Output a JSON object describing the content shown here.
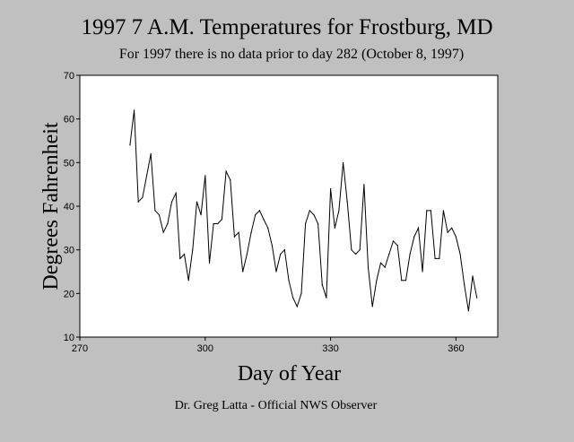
{
  "chart_data": {
    "type": "line",
    "title": "1997 7 A.M. Temperatures for Frostburg, MD",
    "subtitle": "For 1997 there is no data prior to day 282 (October 8, 1997)",
    "xlabel": "Day of Year",
    "ylabel": "Degrees Fahrenheit",
    "footer": "Dr. Greg Latta - Official NWS Observer",
    "xlim": [
      270,
      370
    ],
    "ylim": [
      10,
      70
    ],
    "xticks": [
      270,
      300,
      330,
      360
    ],
    "yticks": [
      10,
      20,
      30,
      40,
      50,
      60,
      70
    ],
    "grid": false,
    "line_color": "#000000",
    "plot_background": "#ffffff",
    "background": "#c0c0c0",
    "series": [
      {
        "x": [
          282,
          283,
          284,
          285,
          286,
          287,
          288,
          289,
          290,
          291,
          292,
          293,
          294,
          295,
          296,
          297,
          298,
          299,
          300,
          301,
          302,
          303,
          304,
          305,
          306,
          307,
          308,
          309,
          310,
          311,
          312,
          313,
          314,
          315,
          316,
          317,
          318,
          319,
          320,
          321,
          322,
          323,
          324,
          325,
          326,
          327,
          328,
          329,
          330,
          331,
          332,
          333,
          334,
          335,
          336,
          337,
          338,
          339,
          340,
          341,
          342,
          343,
          344,
          345,
          346,
          347,
          348,
          349,
          350,
          351,
          352,
          353,
          354,
          355,
          356,
          357,
          358,
          359,
          360,
          361,
          362,
          363,
          364,
          365
        ],
        "y": [
          54,
          62,
          41,
          42,
          47,
          52,
          39,
          38,
          34,
          36,
          41,
          43,
          28,
          29,
          23,
          30,
          41,
          38,
          47,
          27,
          36,
          36,
          37,
          48,
          46,
          33,
          34,
          25,
          29,
          34,
          38,
          39,
          37,
          35,
          31,
          25,
          29,
          30,
          23,
          19,
          17,
          20,
          36,
          39,
          38,
          36,
          22,
          19,
          44,
          35,
          39,
          50,
          41,
          30,
          29,
          30,
          45,
          26,
          17,
          23,
          27,
          26,
          29,
          32,
          31,
          23,
          23,
          29,
          33,
          35,
          25,
          39,
          39,
          28,
          28,
          39,
          34,
          35,
          33,
          29,
          22,
          16,
          24,
          19
        ]
      }
    ]
  }
}
